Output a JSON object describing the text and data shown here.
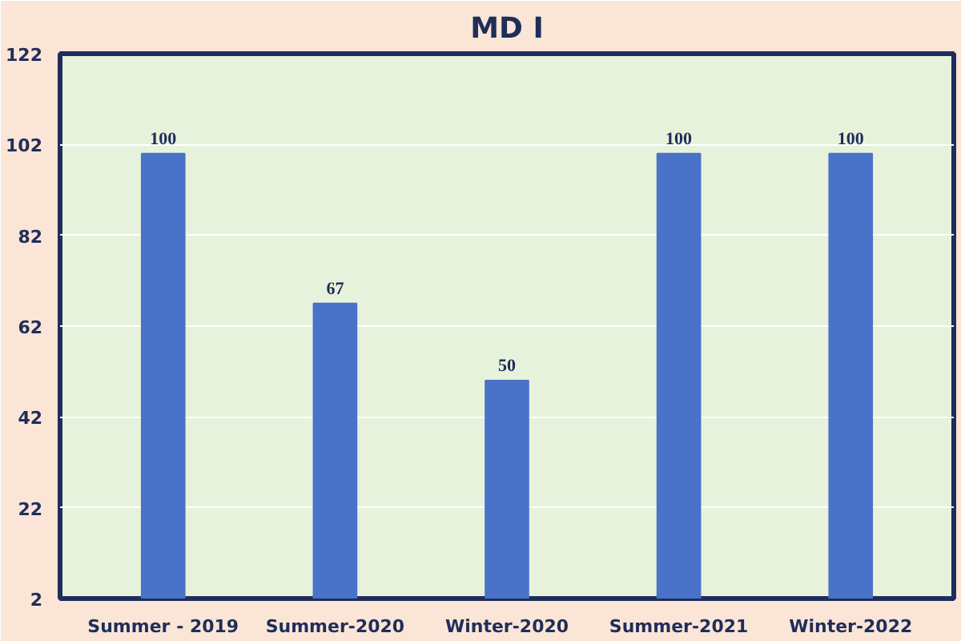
{
  "chart_data": {
    "type": "bar",
    "title": "MD I",
    "categories": [
      "Summer - 2019",
      "Summer-2020",
      "Winter-2020",
      "Summer-2021",
      "Winter-2022"
    ],
    "values": [
      100,
      67,
      50,
      100,
      100
    ],
    "color": "#4a72c8",
    "ylim": [
      2,
      122
    ],
    "yticks": [
      2,
      22,
      42,
      62,
      82,
      102,
      122
    ],
    "grid": "y",
    "data_labels": true
  }
}
